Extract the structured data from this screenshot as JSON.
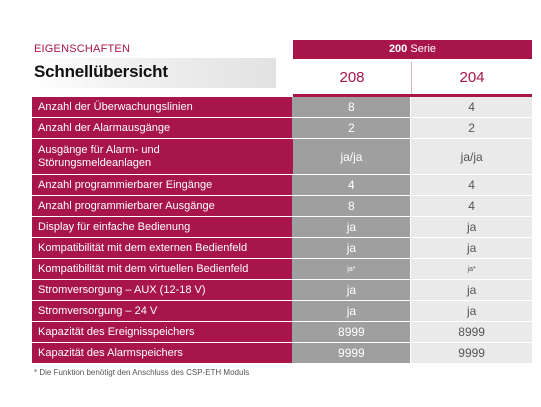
{
  "header": {
    "section_label": "EIGENSCHAFTEN",
    "title": "Schnellübersicht",
    "series_number": "200",
    "series_word": "Serie",
    "models": [
      "208",
      "204"
    ]
  },
  "colors": {
    "accent": "#a8154a",
    "col208_bg": "#9f9f9f",
    "col204_bg": "#eaeaea"
  },
  "rows": [
    {
      "label": "Anzahl der Überwachungslinien",
      "v208": "8",
      "v204": "4"
    },
    {
      "label": "Anzahl der Alarmausgänge",
      "v208": "2",
      "v204": "2"
    },
    {
      "label": "Ausgänge für Alarm- und Störungsmeldeanlagen",
      "v208": "ja/ja",
      "v204": "ja/ja"
    },
    {
      "label": "Anzahl programmierbarer Eingänge",
      "v208": "4",
      "v204": "4"
    },
    {
      "label": "Anzahl programmierbarer Ausgänge",
      "v208": "8",
      "v204": "4"
    },
    {
      "label": "Display für einfache Bedienung",
      "v208": "ja",
      "v204": "ja"
    },
    {
      "label": "Kompatibilität mit dem externen Bedienfeld",
      "v208": "ja",
      "v204": "ja"
    },
    {
      "label": "Kompatibilität mit dem virtuellen Bedienfeld",
      "v208": "ja*",
      "v204": "ja*"
    },
    {
      "label": "Stromversorgung – AUX (12-18 V)",
      "v208": "ja",
      "v204": "ja"
    },
    {
      "label": "Stromversorgung – 24 V",
      "v208": "ja",
      "v204": "ja"
    },
    {
      "label": "Kapazität des Ereignisspeichers",
      "v208": "8999",
      "v204": "8999"
    },
    {
      "label": "Kapazität des Alarmspeichers",
      "v208": "9999",
      "v204": "9999"
    }
  ],
  "footnote": "* Die Funktion benötigt den Anschluss des CSP-ETH Moduls"
}
